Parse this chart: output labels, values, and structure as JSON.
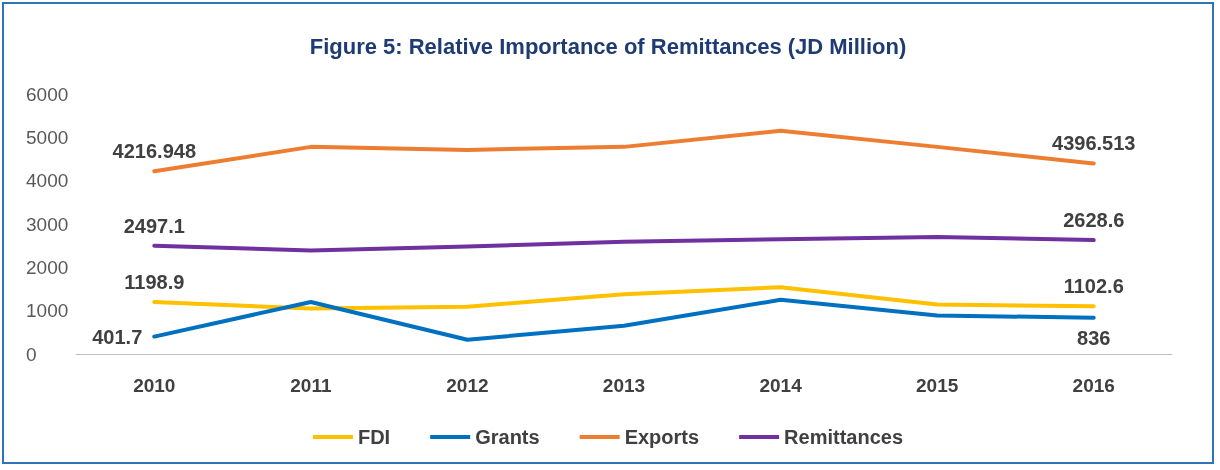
{
  "chart_data": {
    "type": "line",
    "title": "Figure 5: Relative Importance of Remittances (JD Million)",
    "categories": [
      "2010",
      "2011",
      "2012",
      "2013",
      "2014",
      "2015",
      "2016"
    ],
    "series": [
      {
        "name": "FDI",
        "color": "#ffc000",
        "values": [
          1198.9,
          1050,
          1090,
          1380,
          1540,
          1140,
          1102.6
        ],
        "value_labels": [
          "1198.9",
          null,
          null,
          null,
          null,
          null,
          "1102.6"
        ]
      },
      {
        "name": "Grants",
        "color": "#0070c0",
        "values": [
          401.7,
          1200,
          330,
          650,
          1250,
          890,
          836
        ],
        "value_labels": [
          "401.7",
          null,
          null,
          null,
          null,
          null,
          "836"
        ]
      },
      {
        "name": "Exports",
        "color": "#ed7d31",
        "values": [
          4216.948,
          4780,
          4710,
          4780,
          5150,
          4780,
          4396.513
        ],
        "value_labels": [
          "4216.948",
          null,
          null,
          null,
          null,
          null,
          "4396.513"
        ]
      },
      {
        "name": "Remittances",
        "color": "#7030a0",
        "values": [
          2497.1,
          2390,
          2480,
          2590,
          2650,
          2700,
          2628.6
        ],
        "value_labels": [
          "2497.1",
          null,
          null,
          null,
          null,
          null,
          "2628.6"
        ]
      }
    ],
    "ylim": [
      0,
      6000
    ],
    "yticks": [
      0,
      1000,
      2000,
      3000,
      4000,
      5000,
      6000
    ],
    "grid": false,
    "legend": "bottom",
    "marker": "none",
    "line_style": "solid"
  }
}
